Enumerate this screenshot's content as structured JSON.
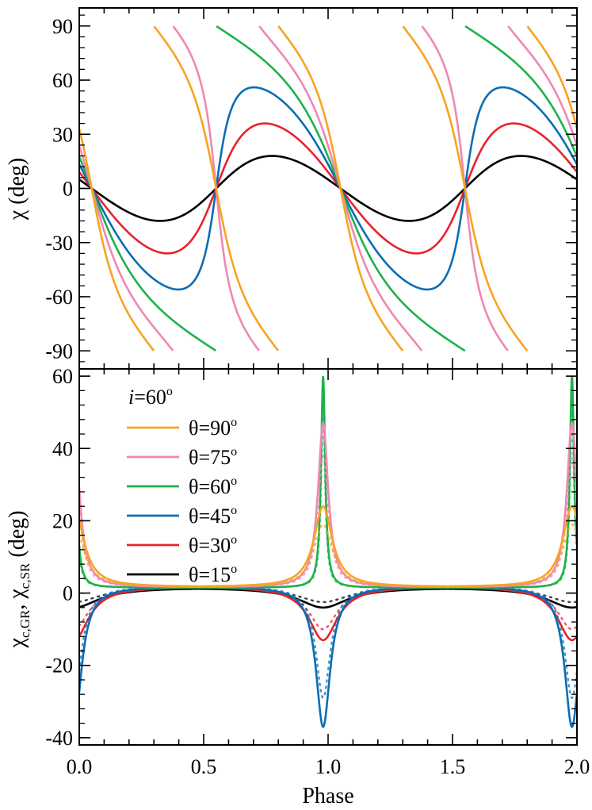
{
  "chart_data": [
    {
      "type": "line",
      "panel": "top",
      "ylabel": "χ (deg)",
      "xlim": [
        0.0,
        2.0
      ],
      "ylim": [
        -100,
        100
      ],
      "yticks": [
        -90,
        -60,
        -30,
        0,
        30,
        60,
        90
      ],
      "ytick_labels": [
        "-90",
        "-60",
        "-30",
        "0",
        "30",
        "60",
        "90"
      ],
      "series": [
        {
          "name": "θ=15°",
          "color": "#000000",
          "amplitude": 18,
          "phase_offset": 0.0
        },
        {
          "name": "θ=30°",
          "color": "#e8232b",
          "amplitude": 36,
          "phase_offset": 0.0
        },
        {
          "name": "θ=45°",
          "color": "#0a6db4",
          "amplitude": 56,
          "phase_offset": 0.0
        },
        {
          "name": "θ=60°",
          "color": "#1cb24b",
          "amplitude": 90,
          "phase_offset": 0.0
        },
        {
          "name": "θ=75°",
          "color": "#f087b4",
          "amplitude": 90,
          "phase_offset": 0.0
        },
        {
          "name": "θ=90°",
          "color": "#f7a421",
          "amplitude": 90,
          "phase_offset": 0.0
        }
      ]
    },
    {
      "type": "line",
      "panel": "bottom",
      "ylabel_main": "χ",
      "ylabel_sub1": "c,GR",
      "ylabel_sep": ",  ",
      "ylabel_sub2": "c,SR",
      "ylabel_unit": "  (deg)",
      "xlabel": "Phase",
      "xlim": [
        0.0,
        2.0
      ],
      "ylim": [
        -42,
        62
      ],
      "xticks": [
        0.0,
        0.5,
        1.0,
        1.5,
        2.0
      ],
      "xtick_labels": [
        "0.0",
        "0.5",
        "1.0",
        "1.5",
        "2.0"
      ],
      "yticks": [
        -40,
        -20,
        0,
        20,
        40,
        60
      ],
      "ytick_labels": [
        "-40",
        "-20",
        "0",
        "20",
        "40",
        "60"
      ],
      "legend": {
        "title_var": "i",
        "title_rest": "=60",
        "title_sup": "o",
        "placement": "top-left",
        "entries": [
          {
            "var": "θ",
            "rest": "=90",
            "sup": "o",
            "color": "#f7a421"
          },
          {
            "var": "θ",
            "rest": "=75",
            "sup": "o",
            "color": "#f087b4"
          },
          {
            "var": "θ",
            "rest": "=60",
            "sup": "o",
            "color": "#1cb24b"
          },
          {
            "var": "θ",
            "rest": "=45",
            "sup": "o",
            "color": "#0a6db4"
          },
          {
            "var": "θ",
            "rest": "=30",
            "sup": "o",
            "color": "#e8232b"
          },
          {
            "var": "θ",
            "rest": "=15",
            "sup": "o",
            "color": "#000000"
          }
        ]
      },
      "series": [
        {
          "name": "θ=15°",
          "color": "#000000",
          "peak": -4,
          "width": 0.12,
          "baseline": 1.5,
          "dotted_peak": -2.5
        },
        {
          "name": "θ=30°",
          "color": "#e8232b",
          "peak": -13,
          "width": 0.07,
          "baseline": 1.8,
          "dotted_peak": -10
        },
        {
          "name": "θ=45°",
          "color": "#0a6db4",
          "peak": -37,
          "width": 0.035,
          "baseline": 1.8,
          "dotted_peak": -29
        },
        {
          "name": "θ=60°",
          "color": "#1cb24b",
          "peak": 60,
          "width": 0.01,
          "baseline": 1.5,
          "dotted_peak": 50
        },
        {
          "name": "θ=75°",
          "color": "#f087b4",
          "peak": 47,
          "width": 0.025,
          "baseline": 1.6,
          "dotted_peak": 38
        },
        {
          "name": "θ=90°",
          "color": "#f7a421",
          "peak": 24,
          "width": 0.045,
          "baseline": 1.7,
          "dotted_peak": 19
        }
      ]
    }
  ]
}
